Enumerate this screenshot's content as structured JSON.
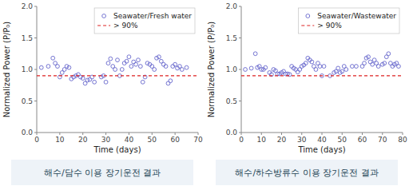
{
  "chart_data": [
    {
      "type": "scatter",
      "title": "해수/담수 이용 장기운전 결과",
      "x_label": "Time (days)",
      "y_label": "Normalized Power (P/P₀)",
      "xlim": [
        0,
        70
      ],
      "ylim": [
        0.0,
        2.0
      ],
      "xticks": [
        0,
        10,
        20,
        30,
        40,
        50,
        60,
        70
      ],
      "yticks": [
        {
          "value": 0,
          "label": "0.0"
        },
        0.5,
        {
          "value": 1,
          "label": "1.0"
        },
        1.5,
        {
          "value": 2,
          "label": "2.0"
        }
      ],
      "grid": false,
      "legend": "upper right",
      "series": [
        {
          "name": "Seawater/Fresh water",
          "type": "scatter",
          "color": "#6666cc",
          "marker": "circle",
          "x": [
            2,
            5,
            7,
            8,
            9,
            10,
            11,
            12,
            13,
            14,
            15,
            16,
            17,
            18,
            19,
            20,
            21,
            22,
            23,
            24,
            25,
            28,
            29,
            30,
            31,
            32,
            33,
            34,
            35,
            36,
            37,
            38,
            39,
            40,
            41,
            42,
            43,
            44,
            45,
            46,
            47,
            48,
            49,
            50,
            51,
            52,
            53,
            54,
            55,
            56,
            57,
            58,
            59,
            60,
            61,
            62,
            63,
            65
          ],
          "values": [
            1.03,
            1.05,
            1.18,
            1.1,
            1.05,
            0.88,
            0.95,
            1.0,
            1.05,
            1.03,
            0.85,
            0.88,
            0.9,
            0.92,
            0.88,
            0.86,
            0.78,
            0.83,
            0.84,
            0.88,
            0.8,
            0.88,
            0.9,
            0.8,
            1.1,
            1.17,
            1.05,
            1.0,
            1.15,
            0.9,
            1.0,
            1.1,
            1.13,
            1.2,
            1.05,
            1.12,
            1.08,
            1.15,
            1.05,
            0.8,
            0.88,
            1.1,
            1.08,
            1.05,
            1.0,
            1.18,
            1.2,
            1.13,
            1.08,
            1.05,
            0.78,
            0.82,
            1.05,
            1.08,
            1.02,
            1.05,
            1.0,
            1.03
          ]
        },
        {
          "name": "> 90%",
          "type": "hline",
          "color": "#dd2222",
          "line_style": "dashed",
          "values": [
            0.9
          ]
        }
      ]
    },
    {
      "type": "scatter",
      "title": "해수/하수방류수 이용 장기운전 결과",
      "x_label": "Time (days)",
      "y_label": "Normalized Power (P/P₀)",
      "xlim": [
        0,
        80
      ],
      "ylim": [
        0.0,
        2.0
      ],
      "xticks": [
        0,
        10,
        20,
        30,
        40,
        50,
        60,
        70,
        80
      ],
      "yticks": [
        {
          "value": 0,
          "label": "0.0"
        },
        0.5,
        {
          "value": 1,
          "label": "1.0"
        },
        1.5,
        {
          "value": 2,
          "label": "2.0"
        }
      ],
      "grid": false,
      "legend": "upper right",
      "series": [
        {
          "name": "Seawater/Wastewater",
          "type": "scatter",
          "color": "#6666cc",
          "marker": "circle",
          "x": [
            2,
            5,
            7,
            8,
            9,
            10,
            11,
            12,
            14,
            15,
            16,
            17,
            18,
            19,
            20,
            21,
            22,
            23,
            24,
            25,
            26,
            27,
            28,
            29,
            30,
            31,
            32,
            33,
            34,
            35,
            36,
            37,
            38,
            39,
            40,
            41,
            44,
            46,
            47,
            48,
            49,
            50,
            51,
            52,
            55,
            57,
            60,
            61,
            62,
            63,
            64,
            65,
            66,
            67,
            68,
            70,
            71,
            72,
            73,
            74,
            75,
            76,
            77,
            78
          ],
          "values": [
            1.0,
            1.02,
            1.25,
            1.03,
            1.05,
            1.0,
            1.0,
            1.03,
            0.95,
            0.92,
            1.0,
            0.98,
            0.93,
            0.93,
            0.95,
            0.97,
            0.93,
            0.93,
            0.92,
            1.05,
            1.02,
            1.0,
            0.96,
            1.0,
            1.05,
            1.07,
            1.1,
            1.18,
            1.15,
            1.12,
            1.05,
            1.0,
            1.1,
            1.05,
            0.9,
            1.05,
            0.9,
            0.95,
            0.97,
            1.02,
            0.95,
            0.97,
            1.05,
            1.0,
            1.05,
            1.05,
            1.05,
            1.1,
            1.18,
            1.2,
            1.12,
            1.08,
            1.15,
            1.1,
            1.05,
            1.08,
            1.1,
            1.2,
            1.25,
            1.1,
            1.05,
            1.08,
            1.1,
            1.05
          ]
        },
        {
          "name": "> 90%",
          "type": "hline",
          "color": "#dd2222",
          "line_style": "dashed",
          "values": [
            0.9
          ]
        }
      ]
    }
  ]
}
